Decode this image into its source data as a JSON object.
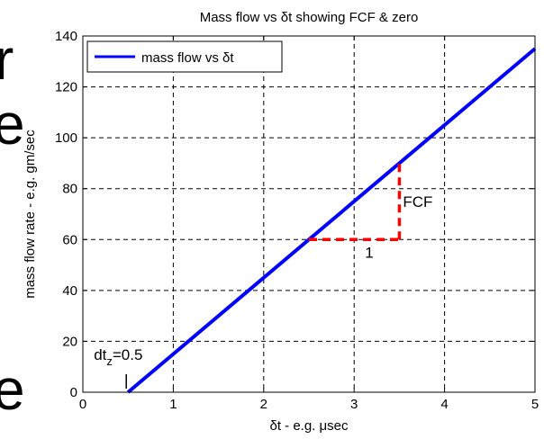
{
  "background_glyphs": [
    "r",
    "e",
    "e"
  ],
  "chart_data": {
    "type": "line",
    "title": "Mass flow vs δt showing FCF & zero",
    "xlabel": "δt - e.g. μsec",
    "ylabel": "mass flow rate - e.g. gm/sec",
    "xlim": [
      0,
      5
    ],
    "ylim": [
      0,
      140
    ],
    "xticks": [
      0,
      1,
      2,
      3,
      4,
      5
    ],
    "yticks": [
      0,
      20,
      40,
      60,
      80,
      100,
      120,
      140
    ],
    "grid": true,
    "legend_placement": "top-left",
    "series": [
      {
        "name": "mass flow vs δt",
        "color": "#0000ff",
        "x": [
          0.5,
          5
        ],
        "y": [
          0,
          135
        ]
      }
    ],
    "annotations": {
      "fcf_triangle_color": "#ff0000",
      "run": {
        "x": [
          2.5,
          3.5
        ],
        "y": 60,
        "label": "1"
      },
      "rise": {
        "x": 3.5,
        "y": [
          60,
          90
        ],
        "label": "FCF"
      },
      "zero_marker": {
        "x": 0.5,
        "label_main": "dt",
        "label_sub": "z",
        "label_value": "=0.5"
      }
    }
  }
}
